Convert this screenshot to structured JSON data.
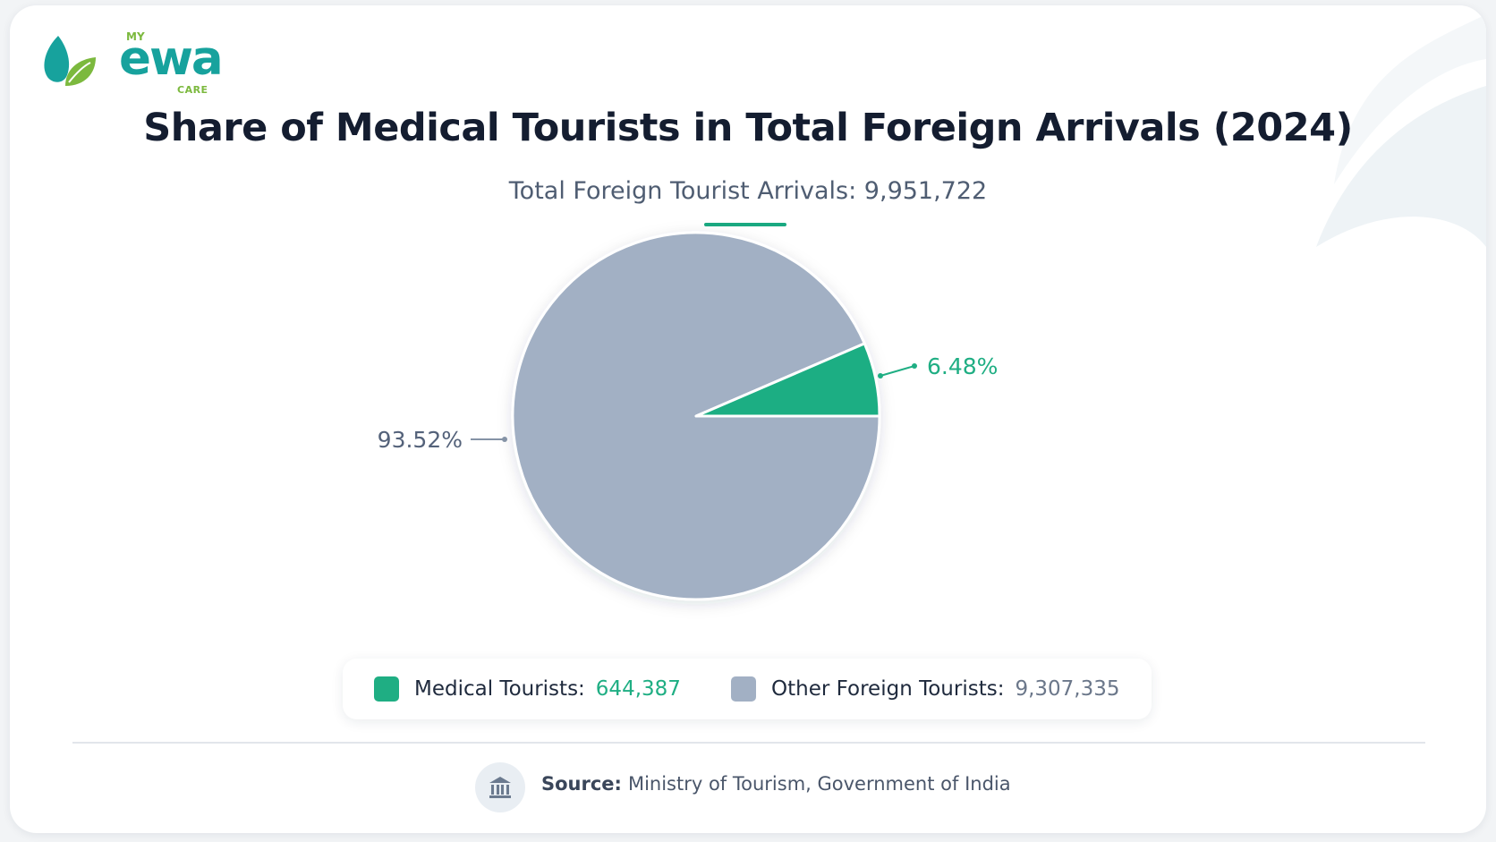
{
  "brand": {
    "top": "MY",
    "word": "ewa",
    "bottom": "CARE"
  },
  "header": {
    "title": "Share of Medical Tourists in Total Foreign Arrivals (2024)",
    "subtitle": "Total Foreign Tourist Arrivals: 9,951,722"
  },
  "chart_data": {
    "type": "pie",
    "title": "Share of Medical Tourists in Total Foreign Arrivals (2024)",
    "subtitle": "Total Foreign Tourist Arrivals: 9,951,722",
    "categories": [
      "Medical Tourists",
      "Other Foreign Tourists"
    ],
    "values": [
      644387,
      9307335
    ],
    "percent_labels": [
      "6.48%",
      "93.52%"
    ],
    "value_labels": [
      "644,387",
      "9,307,335"
    ],
    "colors": [
      "#1fae83",
      "#a2b0c4"
    ],
    "legend_placement": "bottom"
  },
  "legend": {
    "medical_label": "Medical Tourists:",
    "other_label": "Other Foreign Tourists:"
  },
  "footer": {
    "source_key": "Source:",
    "source_text": "Ministry of Tourism, Government of India",
    "icon": "government-building-icon"
  },
  "colors": {
    "accent_green": "#1fae83",
    "slate": "#a2b0c4",
    "brand_teal": "#17a29d",
    "brand_lime": "#7cb93e"
  }
}
